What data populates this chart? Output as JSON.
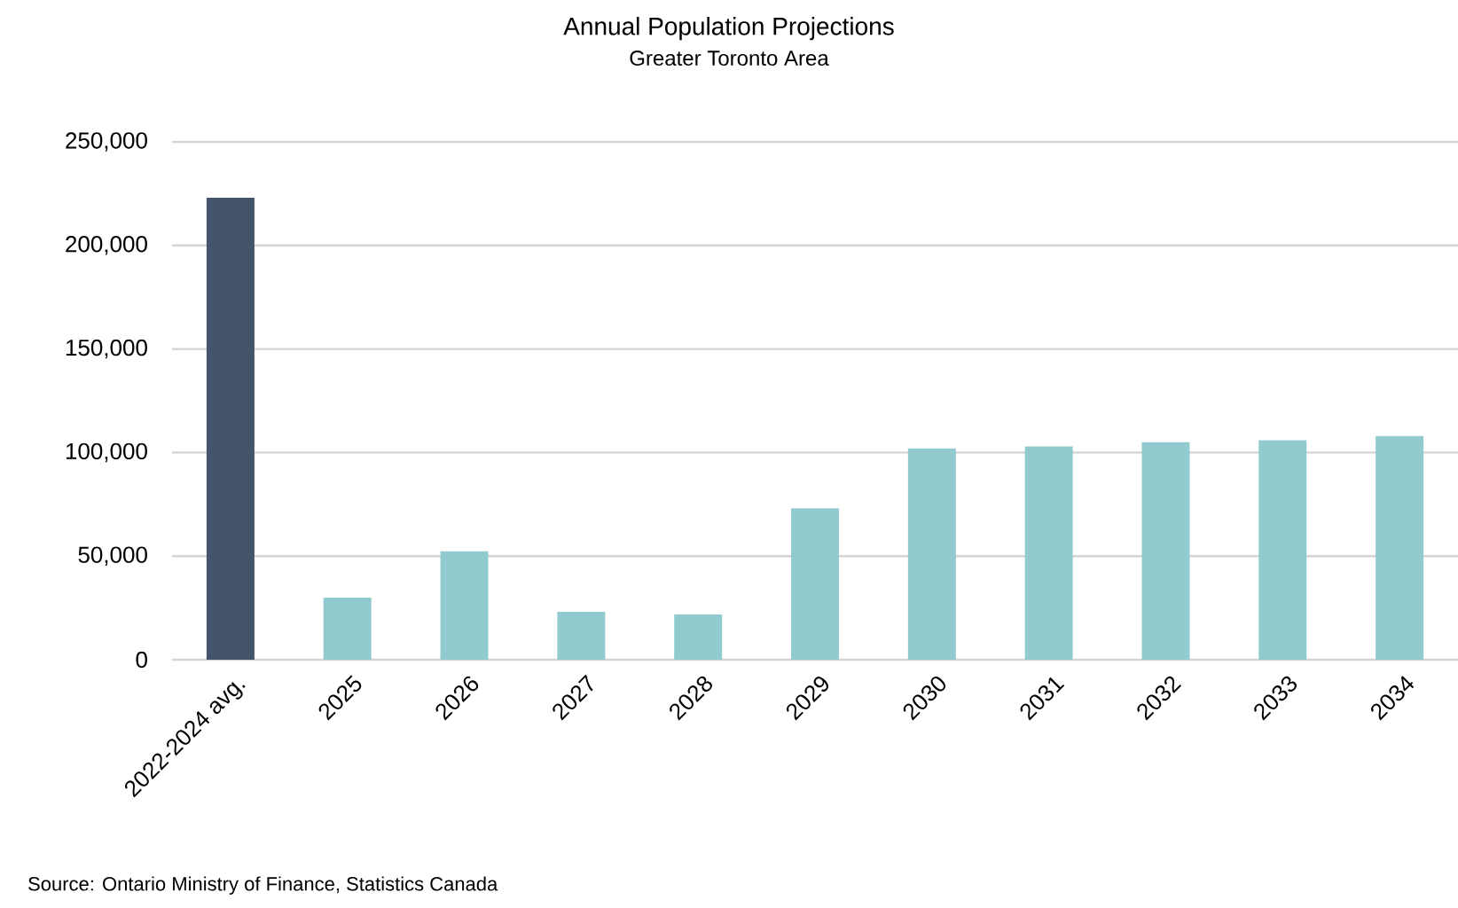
{
  "chart_data": {
    "type": "bar",
    "title": "Annual Population Projections",
    "subtitle": "Greater Toronto Area",
    "categories": [
      "2022-2024 avg.",
      "2025",
      "2026",
      "2027",
      "2028",
      "2029",
      "2030",
      "2031",
      "2032",
      "2033",
      "2034"
    ],
    "values": [
      223000,
      30000,
      52300,
      23100,
      21800,
      73100,
      102000,
      103000,
      105000,
      106000,
      108000
    ],
    "colors": [
      "#44546a",
      "#92cbcf",
      "#92cbcf",
      "#92cbcf",
      "#92cbcf",
      "#92cbcf",
      "#92cbcf",
      "#92cbcf",
      "#92cbcf",
      "#92cbcf",
      "#92cbcf"
    ],
    "ylim": [
      0,
      250000
    ],
    "yticks": [
      0,
      {
        "value": 50000,
        "label": "50,000"
      },
      {
        "value": 100000,
        "label": "100,000"
      },
      {
        "value": 150000,
        "label": "150,000"
      },
      {
        "value": 200000,
        "label": "200,000"
      },
      {
        "value": 250000,
        "label": "250,000"
      }
    ],
    "grid": "y",
    "annotations": [
      "Source: Ontario Ministry of Finance, Statistics Canada"
    ]
  }
}
